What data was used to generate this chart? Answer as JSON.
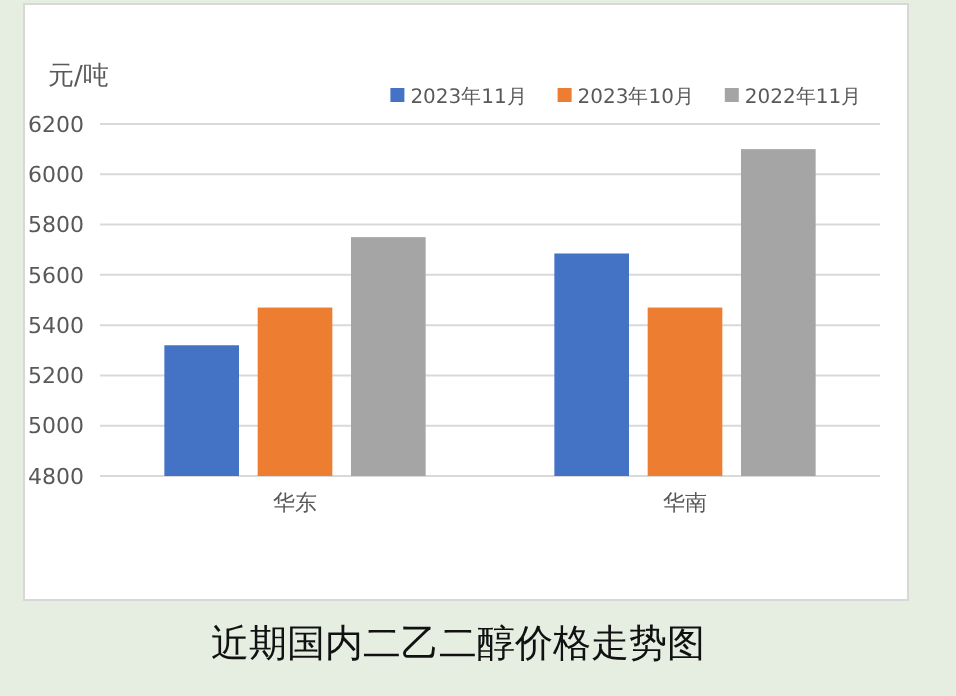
{
  "chart_data": {
    "type": "bar",
    "title": "近期国内二乙二醇价格走势图",
    "ylabel": "元/吨",
    "categories": [
      "华东",
      "华南"
    ],
    "series": [
      {
        "name": "2023年11月",
        "color": "#4472c4",
        "values": [
          5320,
          5685
        ]
      },
      {
        "name": "2023年10月",
        "color": "#ed7d31",
        "values": [
          5470,
          5470
        ]
      },
      {
        "name": "2022年11月",
        "color": "#a5a5a5",
        "values": [
          5750,
          6100
        ]
      }
    ],
    "ylim": [
      4800,
      6200
    ],
    "yticks": [
      4800,
      5000,
      5200,
      5400,
      5600,
      5800,
      6000,
      6200
    ],
    "grid": "y",
    "legend": "top right"
  }
}
